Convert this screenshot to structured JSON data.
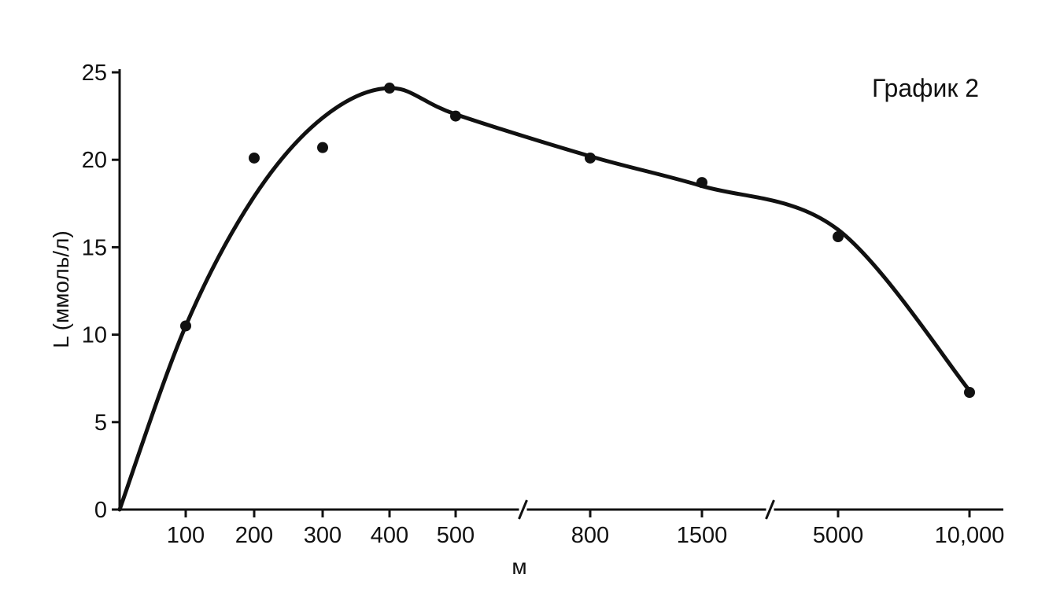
{
  "chart_data": {
    "type": "line",
    "title": "График 2",
    "xlabel": "м",
    "ylabel": "L (ммоль/л)",
    "categories": [
      "100",
      "200",
      "300",
      "400",
      "500",
      "800",
      "1500",
      "5000",
      "10,000"
    ],
    "x_axis_breaks": [
      "500-800",
      "1500-5000"
    ],
    "yticks": [
      "0",
      "5",
      "10",
      "15",
      "20",
      "25"
    ],
    "ylim": [
      0,
      25
    ],
    "grid": false,
    "series": [
      {
        "type": "scatter",
        "values": [
          10.5,
          20.1,
          20.7,
          24.1,
          22.5,
          20.1,
          18.7,
          15.6,
          6.7
        ]
      },
      {
        "type": "smooth-fit-line",
        "x": [
          "0",
          "100",
          "200",
          "300",
          "400",
          "500",
          "800",
          "1500",
          "5000",
          "10,000"
        ],
        "values": [
          0,
          10.5,
          17.9,
          22.4,
          24.1,
          22.6,
          20.2,
          18.5,
          16.0,
          6.8
        ]
      }
    ]
  }
}
